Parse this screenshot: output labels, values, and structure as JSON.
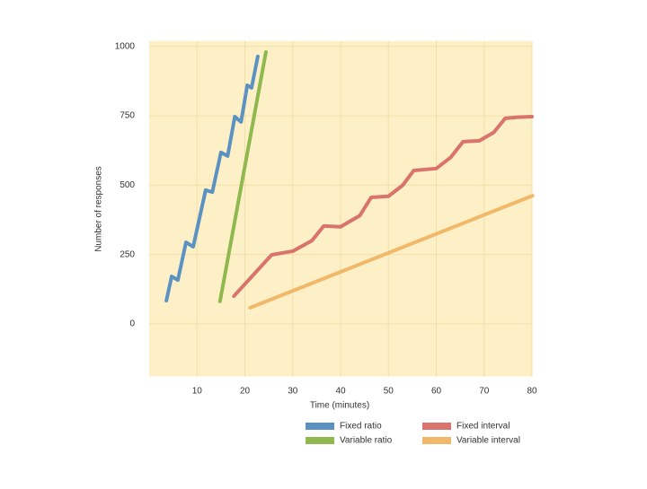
{
  "chart_data": {
    "type": "line",
    "x_label": "Time (minutes)",
    "y_label": "Number of responses",
    "xlim": [
      0,
      80
    ],
    "xticks": [
      10,
      20,
      30,
      40,
      50,
      60,
      70,
      80
    ],
    "ylim": [
      -190,
      1020
    ],
    "yticks": [
      0,
      250,
      500,
      750,
      1000
    ],
    "grid": true,
    "series": [
      {
        "name": "Fixed ratio",
        "color": "#5b92c2",
        "x": [
          3.6,
          4.7,
          6.0,
          7.7,
          9.2,
          11.8,
          13.2,
          15.0,
          16.4,
          17.9,
          19.2,
          20.5,
          21.4,
          22.7
        ],
        "values": [
          84,
          171,
          158,
          294,
          278,
          482,
          475,
          618,
          605,
          747,
          728,
          860,
          851,
          964
        ]
      },
      {
        "name": "Variable ratio",
        "color": "#8fb84e",
        "x": [
          14.8,
          24.4
        ],
        "values": [
          81,
          980
        ]
      },
      {
        "name": "Fixed interval",
        "color": "#d9736b",
        "x": [
          17.7,
          25.6,
          30,
          34,
          36.5,
          40,
          44,
          46.4,
          50,
          53,
          55.3,
          60,
          63,
          65.6,
          69,
          72,
          74.4,
          77,
          80
        ],
        "values": [
          100,
          249,
          262,
          300,
          353,
          350,
          390,
          456,
          460,
          500,
          553,
          560,
          600,
          657,
          660,
          690,
          741,
          745,
          747
        ]
      },
      {
        "name": "Variable interval",
        "color": "#f0b868",
        "x": [
          21.1,
          80.1
        ],
        "values": [
          58,
          462
        ]
      }
    ]
  }
}
